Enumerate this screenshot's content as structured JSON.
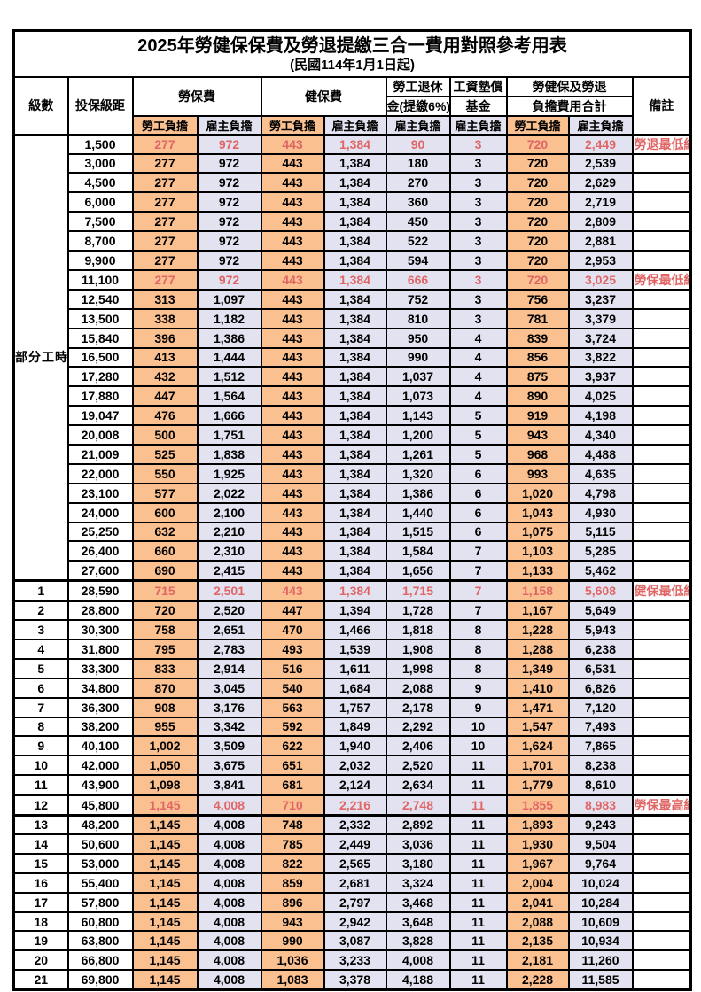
{
  "colors": {
    "employee_col_bg": "#FAC090",
    "employer_col_bg": "#E2E2F0",
    "highlight_text": "#E06666",
    "border": "#000000",
    "page_bg": "#FFFFFF"
  },
  "table": {
    "title": "2025年勞健保保費及勞退提繳三合一費用對照參考用表",
    "subtitle": "(民國114年1月1日起)",
    "header": {
      "level": "級數",
      "bracket": "投保級距",
      "labor_fee": "勞保費",
      "health_fee": "健保費",
      "pension_line1": "勞工退休",
      "pension_line2": "金(提繳6%)",
      "wage_fund_line1": "工資墊償",
      "wage_fund_line2": "基金",
      "total_line1": "勞健保及勞退",
      "total_line2": "負擔費用合計",
      "note": "備註",
      "employee": "勞工負擔",
      "employer": "雇主負擔"
    },
    "group_label": "部分工時",
    "rows": [
      {
        "section": "part",
        "level": "",
        "bracket": "1,500",
        "cells": [
          "277",
          "972",
          "443",
          "1,384",
          "90",
          "3",
          "720",
          "2,449"
        ],
        "note": "勞退最低級距",
        "red": true,
        "thick": false
      },
      {
        "section": "part",
        "level": "",
        "bracket": "3,000",
        "cells": [
          "277",
          "972",
          "443",
          "1,384",
          "180",
          "3",
          "720",
          "2,539"
        ],
        "note": "",
        "red": false,
        "thick": false
      },
      {
        "section": "part",
        "level": "",
        "bracket": "4,500",
        "cells": [
          "277",
          "972",
          "443",
          "1,384",
          "270",
          "3",
          "720",
          "2,629"
        ],
        "note": "",
        "red": false,
        "thick": false
      },
      {
        "section": "part",
        "level": "",
        "bracket": "6,000",
        "cells": [
          "277",
          "972",
          "443",
          "1,384",
          "360",
          "3",
          "720",
          "2,719"
        ],
        "note": "",
        "red": false,
        "thick": false
      },
      {
        "section": "part",
        "level": "",
        "bracket": "7,500",
        "cells": [
          "277",
          "972",
          "443",
          "1,384",
          "450",
          "3",
          "720",
          "2,809"
        ],
        "note": "",
        "red": false,
        "thick": false
      },
      {
        "section": "part",
        "level": "",
        "bracket": "8,700",
        "cells": [
          "277",
          "972",
          "443",
          "1,384",
          "522",
          "3",
          "720",
          "2,881"
        ],
        "note": "",
        "red": false,
        "thick": false
      },
      {
        "section": "part",
        "level": "",
        "bracket": "9,900",
        "cells": [
          "277",
          "972",
          "443",
          "1,384",
          "594",
          "3",
          "720",
          "2,953"
        ],
        "note": "",
        "red": false,
        "thick": false
      },
      {
        "section": "part",
        "level": "",
        "bracket": "11,100",
        "cells": [
          "277",
          "972",
          "443",
          "1,384",
          "666",
          "3",
          "720",
          "3,025"
        ],
        "note": "勞保最低級距",
        "red": true,
        "thick": false
      },
      {
        "section": "part",
        "level": "",
        "bracket": "12,540",
        "cells": [
          "313",
          "1,097",
          "443",
          "1,384",
          "752",
          "3",
          "756",
          "3,237"
        ],
        "note": "",
        "red": false,
        "thick": false
      },
      {
        "section": "part",
        "level": "",
        "bracket": "13,500",
        "cells": [
          "338",
          "1,182",
          "443",
          "1,384",
          "810",
          "3",
          "781",
          "3,379"
        ],
        "note": "",
        "red": false,
        "thick": false
      },
      {
        "section": "part",
        "level": "",
        "bracket": "15,840",
        "cells": [
          "396",
          "1,386",
          "443",
          "1,384",
          "950",
          "4",
          "839",
          "3,724"
        ],
        "note": "",
        "red": false,
        "thick": false
      },
      {
        "section": "part",
        "level": "",
        "bracket": "16,500",
        "cells": [
          "413",
          "1,444",
          "443",
          "1,384",
          "990",
          "4",
          "856",
          "3,822"
        ],
        "note": "",
        "red": false,
        "thick": false
      },
      {
        "section": "part",
        "level": "",
        "bracket": "17,280",
        "cells": [
          "432",
          "1,512",
          "443",
          "1,384",
          "1,037",
          "4",
          "875",
          "3,937"
        ],
        "note": "",
        "red": false,
        "thick": false
      },
      {
        "section": "part",
        "level": "",
        "bracket": "17,880",
        "cells": [
          "447",
          "1,564",
          "443",
          "1,384",
          "1,073",
          "4",
          "890",
          "4,025"
        ],
        "note": "",
        "red": false,
        "thick": false
      },
      {
        "section": "part",
        "level": "",
        "bracket": "19,047",
        "cells": [
          "476",
          "1,666",
          "443",
          "1,384",
          "1,143",
          "5",
          "919",
          "4,198"
        ],
        "note": "",
        "red": false,
        "thick": false
      },
      {
        "section": "part",
        "level": "",
        "bracket": "20,008",
        "cells": [
          "500",
          "1,751",
          "443",
          "1,384",
          "1,200",
          "5",
          "943",
          "4,340"
        ],
        "note": "",
        "red": false,
        "thick": false
      },
      {
        "section": "part",
        "level": "",
        "bracket": "21,009",
        "cells": [
          "525",
          "1,838",
          "443",
          "1,384",
          "1,261",
          "5",
          "968",
          "4,488"
        ],
        "note": "",
        "red": false,
        "thick": false
      },
      {
        "section": "part",
        "level": "",
        "bracket": "22,000",
        "cells": [
          "550",
          "1,925",
          "443",
          "1,384",
          "1,320",
          "6",
          "993",
          "4,635"
        ],
        "note": "",
        "red": false,
        "thick": false
      },
      {
        "section": "part",
        "level": "",
        "bracket": "23,100",
        "cells": [
          "577",
          "2,022",
          "443",
          "1,384",
          "1,386",
          "6",
          "1,020",
          "4,798"
        ],
        "note": "",
        "red": false,
        "thick": false
      },
      {
        "section": "part",
        "level": "",
        "bracket": "24,000",
        "cells": [
          "600",
          "2,100",
          "443",
          "1,384",
          "1,440",
          "6",
          "1,043",
          "4,930"
        ],
        "note": "",
        "red": false,
        "thick": false
      },
      {
        "section": "part",
        "level": "",
        "bracket": "25,250",
        "cells": [
          "632",
          "2,210",
          "443",
          "1,384",
          "1,515",
          "6",
          "1,075",
          "5,115"
        ],
        "note": "",
        "red": false,
        "thick": false
      },
      {
        "section": "part",
        "level": "",
        "bracket": "26,400",
        "cells": [
          "660",
          "2,310",
          "443",
          "1,384",
          "1,584",
          "7",
          "1,103",
          "5,285"
        ],
        "note": "",
        "red": false,
        "thick": false
      },
      {
        "section": "part",
        "level": "",
        "bracket": "27,600",
        "cells": [
          "690",
          "2,415",
          "443",
          "1,384",
          "1,656",
          "7",
          "1,133",
          "5,462"
        ],
        "note": "",
        "red": false,
        "thick": false
      },
      {
        "section": "level",
        "level": "1",
        "bracket": "28,590",
        "cells": [
          "715",
          "2,501",
          "443",
          "1,384",
          "1,715",
          "7",
          "1,158",
          "5,608"
        ],
        "note": "健保最低級距",
        "red": true,
        "thick": true
      },
      {
        "section": "level",
        "level": "2",
        "bracket": "28,800",
        "cells": [
          "720",
          "2,520",
          "447",
          "1,394",
          "1,728",
          "7",
          "1,167",
          "5,649"
        ],
        "note": "",
        "red": false,
        "thick": false
      },
      {
        "section": "level",
        "level": "3",
        "bracket": "30,300",
        "cells": [
          "758",
          "2,651",
          "470",
          "1,466",
          "1,818",
          "8",
          "1,228",
          "5,943"
        ],
        "note": "",
        "red": false,
        "thick": false
      },
      {
        "section": "level",
        "level": "4",
        "bracket": "31,800",
        "cells": [
          "795",
          "2,783",
          "493",
          "1,539",
          "1,908",
          "8",
          "1,288",
          "6,238"
        ],
        "note": "",
        "red": false,
        "thick": false
      },
      {
        "section": "level",
        "level": "5",
        "bracket": "33,300",
        "cells": [
          "833",
          "2,914",
          "516",
          "1,611",
          "1,998",
          "8",
          "1,349",
          "6,531"
        ],
        "note": "",
        "red": false,
        "thick": false
      },
      {
        "section": "level",
        "level": "6",
        "bracket": "34,800",
        "cells": [
          "870",
          "3,045",
          "540",
          "1,684",
          "2,088",
          "9",
          "1,410",
          "6,826"
        ],
        "note": "",
        "red": false,
        "thick": false
      },
      {
        "section": "level",
        "level": "7",
        "bracket": "36,300",
        "cells": [
          "908",
          "3,176",
          "563",
          "1,757",
          "2,178",
          "9",
          "1,471",
          "7,120"
        ],
        "note": "",
        "red": false,
        "thick": false
      },
      {
        "section": "level",
        "level": "8",
        "bracket": "38,200",
        "cells": [
          "955",
          "3,342",
          "592",
          "1,849",
          "2,292",
          "10",
          "1,547",
          "7,493"
        ],
        "note": "",
        "red": false,
        "thick": false
      },
      {
        "section": "level",
        "level": "9",
        "bracket": "40,100",
        "cells": [
          "1,002",
          "3,509",
          "622",
          "1,940",
          "2,406",
          "10",
          "1,624",
          "7,865"
        ],
        "note": "",
        "red": false,
        "thick": false
      },
      {
        "section": "level",
        "level": "10",
        "bracket": "42,000",
        "cells": [
          "1,050",
          "3,675",
          "651",
          "2,032",
          "2,520",
          "11",
          "1,701",
          "8,238"
        ],
        "note": "",
        "red": false,
        "thick": false
      },
      {
        "section": "level",
        "level": "11",
        "bracket": "43,900",
        "cells": [
          "1,098",
          "3,841",
          "681",
          "2,124",
          "2,634",
          "11",
          "1,779",
          "8,610"
        ],
        "note": "",
        "red": false,
        "thick": false
      },
      {
        "section": "level",
        "level": "12",
        "bracket": "45,800",
        "cells": [
          "1,145",
          "4,008",
          "710",
          "2,216",
          "2,748",
          "11",
          "1,855",
          "8,983"
        ],
        "note": "勞保最高級距",
        "red": true,
        "thick": true
      },
      {
        "section": "level",
        "level": "13",
        "bracket": "48,200",
        "cells": [
          "1,145",
          "4,008",
          "748",
          "2,332",
          "2,892",
          "11",
          "1,893",
          "9,243"
        ],
        "note": "",
        "red": false,
        "thick": false
      },
      {
        "section": "level",
        "level": "14",
        "bracket": "50,600",
        "cells": [
          "1,145",
          "4,008",
          "785",
          "2,449",
          "3,036",
          "11",
          "1,930",
          "9,504"
        ],
        "note": "",
        "red": false,
        "thick": false
      },
      {
        "section": "level",
        "level": "15",
        "bracket": "53,000",
        "cells": [
          "1,145",
          "4,008",
          "822",
          "2,565",
          "3,180",
          "11",
          "1,967",
          "9,764"
        ],
        "note": "",
        "red": false,
        "thick": false
      },
      {
        "section": "level",
        "level": "16",
        "bracket": "55,400",
        "cells": [
          "1,145",
          "4,008",
          "859",
          "2,681",
          "3,324",
          "11",
          "2,004",
          "10,024"
        ],
        "note": "",
        "red": false,
        "thick": false
      },
      {
        "section": "level",
        "level": "17",
        "bracket": "57,800",
        "cells": [
          "1,145",
          "4,008",
          "896",
          "2,797",
          "3,468",
          "11",
          "2,041",
          "10,284"
        ],
        "note": "",
        "red": false,
        "thick": false
      },
      {
        "section": "level",
        "level": "18",
        "bracket": "60,800",
        "cells": [
          "1,145",
          "4,008",
          "943",
          "2,942",
          "3,648",
          "11",
          "2,088",
          "10,609"
        ],
        "note": "",
        "red": false,
        "thick": false
      },
      {
        "section": "level",
        "level": "19",
        "bracket": "63,800",
        "cells": [
          "1,145",
          "4,008",
          "990",
          "3,087",
          "3,828",
          "11",
          "2,135",
          "10,934"
        ],
        "note": "",
        "red": false,
        "thick": false
      },
      {
        "section": "level",
        "level": "20",
        "bracket": "66,800",
        "cells": [
          "1,145",
          "4,008",
          "1,036",
          "3,233",
          "4,008",
          "11",
          "2,181",
          "11,260"
        ],
        "note": "",
        "red": false,
        "thick": false
      },
      {
        "section": "level",
        "level": "21",
        "bracket": "69,800",
        "cells": [
          "1,145",
          "4,008",
          "1,083",
          "3,378",
          "4,188",
          "11",
          "2,228",
          "11,585"
        ],
        "note": "",
        "red": false,
        "thick": false
      }
    ]
  }
}
